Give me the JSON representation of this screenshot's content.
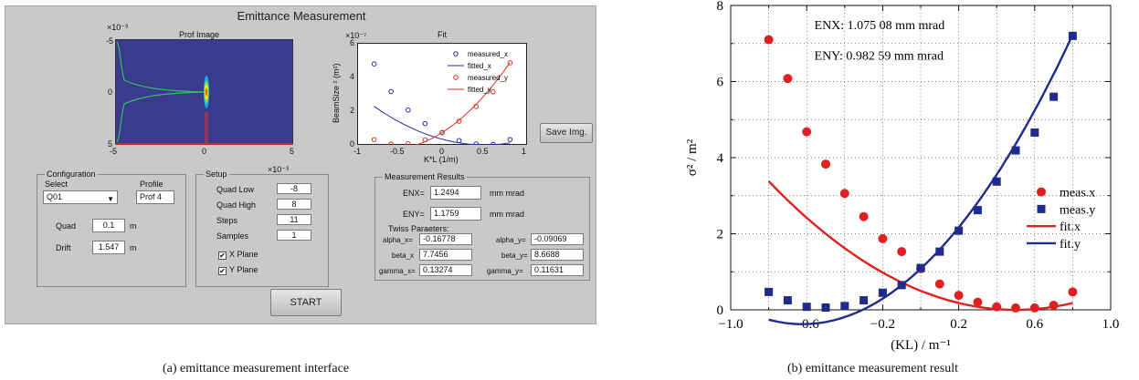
{
  "gui": {
    "title": "Emittance Measurement",
    "prof_image": {
      "title": "Prof Image",
      "exponent": "×10⁻³",
      "y_ticks": [
        "-5",
        "0",
        "5"
      ],
      "x_ticks": [
        "-5",
        "0",
        "5"
      ],
      "bottom_exponent": "×10⁻³"
    },
    "fit_plot": {
      "title": "Fit",
      "exponent": "×10⁻⁷",
      "ylabel": "BeamSize ² (m²)",
      "xlabel": "K*L (1/m)",
      "y_ticks": [
        "6",
        "4",
        "2",
        "0"
      ],
      "x_ticks": [
        "-1",
        "-0.5",
        "0",
        "0.5",
        "1"
      ],
      "legend": [
        "measured_x",
        "fitted_x",
        "measured_y",
        "fitted_y"
      ],
      "colors": {
        "x": "#2a2aa8",
        "y": "#e03020"
      }
    },
    "save_button": "Save Img.",
    "configuration": {
      "label": "Configuration",
      "select_label": "Select",
      "select_value": "Q01",
      "profile_label": "Profile",
      "profile_value": "Prof 4",
      "quad_label": "Quad",
      "quad_value": "0.1",
      "quad_unit": "m",
      "drift_label": "Drift",
      "drift_value": "1.547",
      "drift_unit": "m"
    },
    "setup": {
      "label": "Setup",
      "exponent": "×10⁻³",
      "quad_low_label": "Quad Low",
      "quad_low_value": "-8",
      "quad_high_label": "Quad High",
      "quad_high_value": "8",
      "steps_label": "Steps",
      "steps_value": "11",
      "samples_label": "Samples",
      "samples_value": "1",
      "x_plane_label": "X Plane",
      "y_plane_label": "Y Plane",
      "check_mark": "✔"
    },
    "results": {
      "label": "Measurement Results",
      "enx_label": "ENX=",
      "enx_value": "1.2494",
      "eny_label": "ENY=",
      "eny_value": "1.1759",
      "unit": "mm mrad",
      "twiss_label": "Twiss Paraeters:",
      "alpha_x_label": "alpha_x=",
      "alpha_x_value": "-0.16778",
      "alpha_y_label": "alpha_y=",
      "alpha_y_value": "-0.09069",
      "beta_x_label": "beta_x",
      "beta_x_value": "7.7456",
      "beta_y_label": "beta_y=",
      "beta_y_value": "8.6688",
      "gamma_x_label": "gamma_x=",
      "gamma_x_value": "0.13274",
      "gamma_y_label": "gamma_y=",
      "gamma_y_value": "0.11631"
    },
    "start_button": "START"
  },
  "chart_data": {
    "type": "scatter",
    "x_range": [
      -1.0,
      1.0
    ],
    "y_range": [
      0,
      8
    ],
    "x_ticks": [
      "−1.0",
      "−0.6",
      "−0.2",
      "0.2",
      "0.6",
      "1.0"
    ],
    "y_ticks": [
      "0",
      "2",
      "4",
      "6",
      "8"
    ],
    "xlabel": "(KL) / m⁻¹",
    "ylabel": "σ² / m²",
    "grid": true,
    "annotations": [
      "ENX: 1.075 08 mm mrad",
      "ENY: 0.982 59 mm mrad"
    ],
    "legend": [
      "meas.x",
      "meas.y",
      "fit.x",
      "fit.y"
    ],
    "legend_placement": "right",
    "colors": {
      "x": "#e02020",
      "y": "#1e2a8c"
    },
    "series": [
      {
        "name": "meas.x",
        "x": [
          -0.8,
          -0.7,
          -0.6,
          -0.5,
          -0.4,
          -0.3,
          -0.2,
          -0.1,
          0.0,
          0.1,
          0.2,
          0.3,
          0.4,
          0.5,
          0.6,
          0.7,
          0.8
        ],
        "y": [
          7.1,
          6.08,
          4.68,
          3.83,
          3.06,
          2.45,
          1.87,
          1.53,
          1.08,
          0.68,
          0.38,
          0.2,
          0.08,
          0.05,
          0.05,
          0.12,
          0.47
        ]
      },
      {
        "name": "meas.y",
        "x": [
          -0.8,
          -0.7,
          -0.6,
          -0.5,
          -0.4,
          -0.3,
          -0.2,
          -0.1,
          0.0,
          0.1,
          0.2,
          0.3,
          0.4,
          0.5,
          0.6,
          0.7,
          0.8
        ],
        "y": [
          0.47,
          0.25,
          0.08,
          0.06,
          0.1,
          0.25,
          0.45,
          0.65,
          1.1,
          1.53,
          2.08,
          2.62,
          3.37,
          4.19,
          4.66,
          5.6,
          7.2
        ]
      },
      {
        "name": "fit.x",
        "type": "line",
        "coeffs": [
          0.5,
          -2.0,
          2.0
        ]
      },
      {
        "name": "fit.y",
        "type": "line",
        "coeffs": [
          1.08,
          4.68,
          3.76
        ]
      }
    ]
  },
  "captions": {
    "left": "(a) emittance measurement interface",
    "right": "(b) emittance measurement result"
  }
}
